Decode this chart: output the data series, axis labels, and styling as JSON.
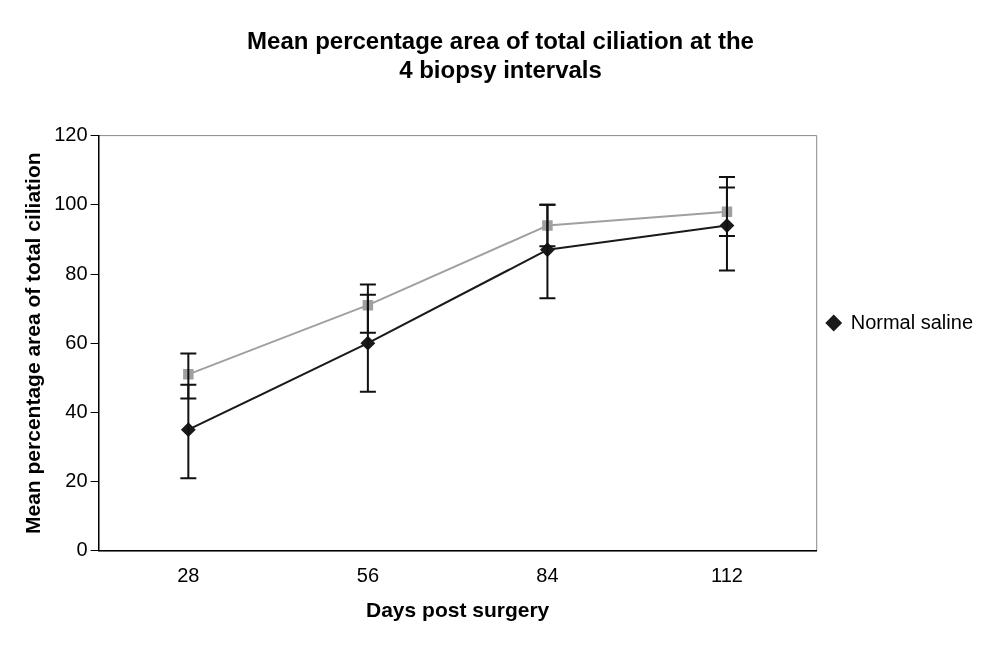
{
  "chart_data": {
    "type": "line",
    "title": "Mean percentage area of total ciliation at the 4 biopsy intervals",
    "xlabel": "Days post surgery",
    "ylabel": "Mean percentage area of total ciliation",
    "categories": [
      "28",
      "56",
      "84",
      "112"
    ],
    "series": [
      {
        "name": "Normal saline",
        "color": "#1a1a1a",
        "marker": "diamond",
        "values": [
          35,
          60,
          87,
          94
        ],
        "errors": [
          [
            21,
            48
          ],
          [
            46,
            74
          ],
          [
            73,
            100
          ],
          [
            81,
            108
          ]
        ]
      },
      {
        "color": "#a0a0a0",
        "marker": "square",
        "values": [
          51,
          71,
          94,
          98
        ],
        "errors": [
          [
            44,
            57
          ],
          [
            63,
            77
          ],
          [
            88,
            100
          ],
          [
            91,
            105
          ]
        ]
      }
    ],
    "ylim": [
      0,
      120
    ],
    "yticks": [
      0,
      20,
      40,
      60,
      80,
      100,
      120
    ],
    "grid": false,
    "legend": "right",
    "line_style": "solid"
  }
}
